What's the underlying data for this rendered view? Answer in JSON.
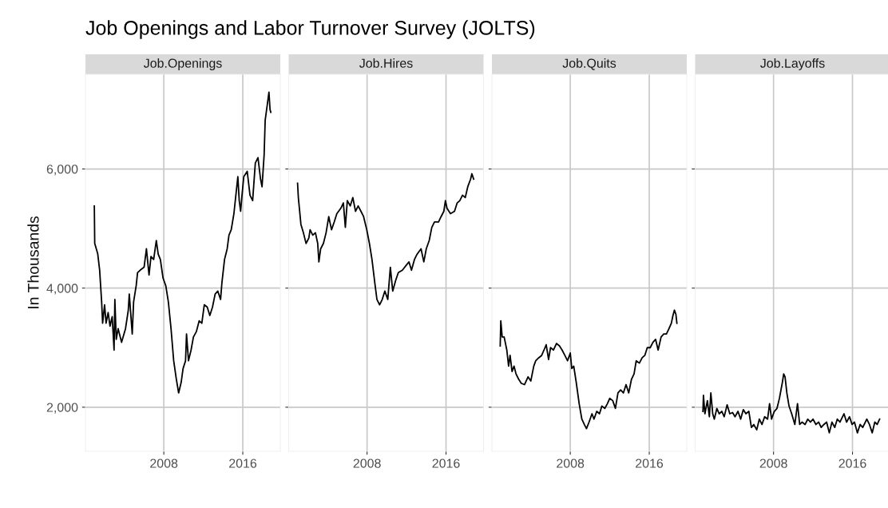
{
  "chart_data": [
    {
      "type": "line",
      "title": "Job Openings and Labor Turnover Survey (JOLTS)",
      "subtitle": "Job.Openings",
      "ylabel": "In Thousands",
      "xlim": [
        2000.06,
        2019.8
      ],
      "xticks": [
        2008,
        2016
      ],
      "ylim": [
        1260,
        7590
      ],
      "yticks": [
        {
          "value": 2000,
          "label": "2,000"
        },
        {
          "value": 4000,
          "label": "4,000"
        },
        {
          "value": 6000,
          "label": "6,000"
        }
      ],
      "grid": true,
      "legend": false,
      "series": [
        {
          "color": "#000000",
          "x": [
            2000.96,
            2001.0,
            2001.3,
            2001.5,
            2001.7,
            2001.8,
            2002.0,
            2002.15,
            2002.36,
            2002.55,
            2002.77,
            2002.96,
            2003.04,
            2003.18,
            2003.37,
            2003.72,
            2004.12,
            2004.4,
            2004.5,
            2004.8,
            2004.94,
            2005.2,
            2005.34,
            2005.6,
            2006.0,
            2006.24,
            2006.5,
            2006.7,
            2006.97,
            2007.24,
            2007.43,
            2007.65,
            2007.92,
            2008.2,
            2008.46,
            2008.73,
            2009.0,
            2009.27,
            2009.5,
            2009.76,
            2009.95,
            2010.2,
            2010.3,
            2010.5,
            2010.76,
            2011.0,
            2011.3,
            2011.58,
            2011.85,
            2012.1,
            2012.4,
            2012.66,
            2012.93,
            2013.2,
            2013.47,
            2013.75,
            2013.88,
            2014.15,
            2014.42,
            2014.6,
            2014.83,
            2015.1,
            2015.3,
            2015.5,
            2015.64,
            2015.78,
            2015.9,
            2016.1,
            2016.45,
            2016.73,
            2017.0,
            2017.27,
            2017.54,
            2017.8,
            2017.95,
            2018.16,
            2018.27,
            2018.49,
            2018.65,
            2018.76,
            2018.84
          ],
          "values": [
            5380,
            4750,
            4580,
            4300,
            3770,
            3410,
            3720,
            3410,
            3590,
            3360,
            3520,
            2960,
            3810,
            3140,
            3320,
            3090,
            3320,
            3630,
            3900,
            3230,
            3770,
            4040,
            4260,
            4300,
            4350,
            4660,
            4220,
            4530,
            4480,
            4800,
            4570,
            4480,
            4170,
            4040,
            3770,
            3320,
            2780,
            2470,
            2240,
            2420,
            2650,
            2780,
            3230,
            2780,
            2960,
            3180,
            3270,
            3450,
            3410,
            3720,
            3680,
            3540,
            3680,
            3900,
            3950,
            3810,
            4080,
            4480,
            4660,
            4890,
            4980,
            5250,
            5560,
            5870,
            5470,
            5290,
            5520,
            5870,
            5960,
            5560,
            5470,
            6100,
            6190,
            5830,
            5700,
            6230,
            6820,
            7090,
            7290,
            7000,
            6950
          ]
        }
      ]
    },
    {
      "type": "line",
      "subtitle": "Job.Hires",
      "xlim": [
        2000.06,
        2019.8
      ],
      "xticks": [
        2008,
        2016
      ],
      "ylim": [
        1260,
        7590
      ],
      "yticks": [
        {
          "value": 2000,
          "label": null
        },
        {
          "value": 4000,
          "label": null
        },
        {
          "value": 6000,
          "label": null
        }
      ],
      "grid": true,
      "legend": false,
      "tick_labels": "x",
      "series": [
        {
          "color": "#000000",
          "x": [
            2000.96,
            2001.04,
            2001.3,
            2001.55,
            2001.82,
            2002.1,
            2002.23,
            2002.5,
            2002.77,
            2003.0,
            2003.12,
            2003.3,
            2003.58,
            2003.85,
            2004.12,
            2004.4,
            2004.67,
            2004.94,
            2005.34,
            2005.6,
            2005.8,
            2006.0,
            2006.3,
            2006.56,
            2006.83,
            2007.1,
            2007.38,
            2007.65,
            2007.97,
            2008.24,
            2008.5,
            2008.79,
            2009.0,
            2009.27,
            2009.54,
            2009.8,
            2010.1,
            2010.36,
            2010.6,
            2010.9,
            2011.17,
            2011.58,
            2012.0,
            2012.25,
            2012.5,
            2012.8,
            2013.07,
            2013.47,
            2013.75,
            2014.0,
            2014.3,
            2014.56,
            2014.83,
            2015.24,
            2015.5,
            2015.78,
            2015.94,
            2016.1,
            2016.45,
            2016.86,
            2017.13,
            2017.4,
            2017.67,
            2017.95,
            2018.2,
            2018.49,
            2018.62,
            2018.8
          ],
          "values": [
            5760,
            5520,
            5070,
            4930,
            4750,
            4840,
            4980,
            4890,
            4930,
            4750,
            4440,
            4660,
            4750,
            4930,
            5200,
            4980,
            5110,
            5250,
            5340,
            5430,
            5020,
            5470,
            5380,
            5520,
            5290,
            5380,
            5290,
            5200,
            4980,
            4750,
            4480,
            4080,
            3810,
            3720,
            3810,
            3950,
            3810,
            4350,
            3950,
            4130,
            4260,
            4300,
            4390,
            4440,
            4300,
            4480,
            4570,
            4660,
            4440,
            4660,
            4800,
            5020,
            5110,
            5110,
            5200,
            5290,
            5470,
            5340,
            5250,
            5290,
            5430,
            5470,
            5560,
            5520,
            5700,
            5830,
            5920,
            5830
          ]
        }
      ]
    },
    {
      "type": "line",
      "subtitle": "Job.Quits",
      "xlim": [
        2000.06,
        2019.8
      ],
      "xticks": [
        2008,
        2016
      ],
      "ylim": [
        1260,
        7590
      ],
      "yticks": [
        {
          "value": 2000,
          "label": null
        },
        {
          "value": 4000,
          "label": null
        },
        {
          "value": 6000,
          "label": null
        }
      ],
      "grid": true,
      "legend": false,
      "tick_labels": "x",
      "series": [
        {
          "color": "#000000",
          "x": [
            2000.9,
            2000.96,
            2001.1,
            2001.3,
            2001.57,
            2001.75,
            2001.9,
            2002.1,
            2002.3,
            2002.5,
            2002.77,
            2003.04,
            2003.37,
            2003.72,
            2004.0,
            2004.3,
            2004.5,
            2004.8,
            2005.1,
            2005.34,
            2005.56,
            2005.8,
            2006.0,
            2006.3,
            2006.6,
            2006.9,
            2007.17,
            2007.45,
            2007.72,
            2008.0,
            2008.15,
            2008.35,
            2008.6,
            2008.9,
            2009.17,
            2009.45,
            2009.64,
            2009.9,
            2010.2,
            2010.4,
            2010.68,
            2010.96,
            2011.2,
            2011.5,
            2011.76,
            2012.0,
            2012.3,
            2012.57,
            2012.83,
            2013.1,
            2013.38,
            2013.65,
            2013.92,
            2014.2,
            2014.46,
            2014.68,
            2015.0,
            2015.28,
            2015.55,
            2015.8,
            2016.1,
            2016.37,
            2016.64,
            2016.9,
            2017.2,
            2017.47,
            2017.74,
            2018.0,
            2018.24,
            2018.4,
            2018.55,
            2018.7,
            2018.8
          ],
          "values": [
            3030,
            3450,
            3180,
            3180,
            2960,
            2690,
            2870,
            2600,
            2690,
            2560,
            2470,
            2400,
            2380,
            2510,
            2440,
            2690,
            2780,
            2830,
            2870,
            2960,
            3050,
            2800,
            3000,
            2960,
            3070,
            3030,
            2960,
            2870,
            2780,
            2910,
            2650,
            2690,
            2420,
            2060,
            1800,
            1700,
            1640,
            1750,
            1890,
            1800,
            1930,
            1890,
            2020,
            1980,
            2060,
            2150,
            2110,
            1980,
            2240,
            2290,
            2240,
            2380,
            2240,
            2470,
            2560,
            2780,
            2740,
            2830,
            2870,
            3000,
            3000,
            3090,
            3140,
            2960,
            3180,
            3230,
            3230,
            3320,
            3410,
            3540,
            3630,
            3560,
            3410
          ]
        }
      ]
    },
    {
      "type": "line",
      "subtitle": "Job.Layoffs",
      "xlim": [
        2000.06,
        2019.8
      ],
      "xticks": [
        2008,
        2016
      ],
      "ylim": [
        1260,
        7590
      ],
      "yticks": [
        {
          "value": 2000,
          "label": null
        },
        {
          "value": 4000,
          "label": null
        },
        {
          "value": 6000,
          "label": null
        }
      ],
      "grid": true,
      "legend": false,
      "tick_labels": "x",
      "series": [
        {
          "color": "#000000",
          "x": [
            2000.85,
            2000.9,
            2001.05,
            2001.3,
            2001.5,
            2001.65,
            2001.84,
            2002.0,
            2002.26,
            2002.5,
            2002.77,
            2003.0,
            2003.3,
            2003.57,
            2003.85,
            2004.1,
            2004.4,
            2004.67,
            2004.94,
            2005.2,
            2005.5,
            2005.76,
            2006.0,
            2006.3,
            2006.56,
            2006.83,
            2007.1,
            2007.4,
            2007.6,
            2007.8,
            2008.08,
            2008.35,
            2008.6,
            2008.9,
            2009.03,
            2009.17,
            2009.35,
            2009.57,
            2009.84,
            2010.16,
            2010.43,
            2010.65,
            2010.9,
            2011.2,
            2011.47,
            2011.74,
            2012.0,
            2012.3,
            2012.57,
            2012.83,
            2013.1,
            2013.38,
            2013.65,
            2013.92,
            2014.2,
            2014.46,
            2014.73,
            2015.14,
            2015.4,
            2015.7,
            2015.96,
            2016.2,
            2016.5,
            2016.77,
            2017.04,
            2017.45,
            2017.72,
            2018.0,
            2018.26,
            2018.5,
            2018.75
          ],
          "values": [
            1930,
            2200,
            1890,
            2110,
            1840,
            2240,
            1890,
            1800,
            1980,
            1890,
            1930,
            1840,
            2040,
            1890,
            1910,
            1840,
            1930,
            1800,
            1960,
            1890,
            1930,
            1660,
            1710,
            1620,
            1800,
            1710,
            1840,
            1800,
            2060,
            1800,
            1930,
            1980,
            2150,
            2420,
            2560,
            2510,
            2240,
            2020,
            1890,
            1710,
            2060,
            1710,
            1750,
            1710,
            1800,
            1750,
            1800,
            1710,
            1750,
            1660,
            1710,
            1750,
            1570,
            1750,
            1660,
            1800,
            1750,
            1890,
            1750,
            1840,
            1710,
            1750,
            1570,
            1710,
            1660,
            1800,
            1710,
            1570,
            1750,
            1710,
            1800
          ]
        }
      ]
    }
  ]
}
